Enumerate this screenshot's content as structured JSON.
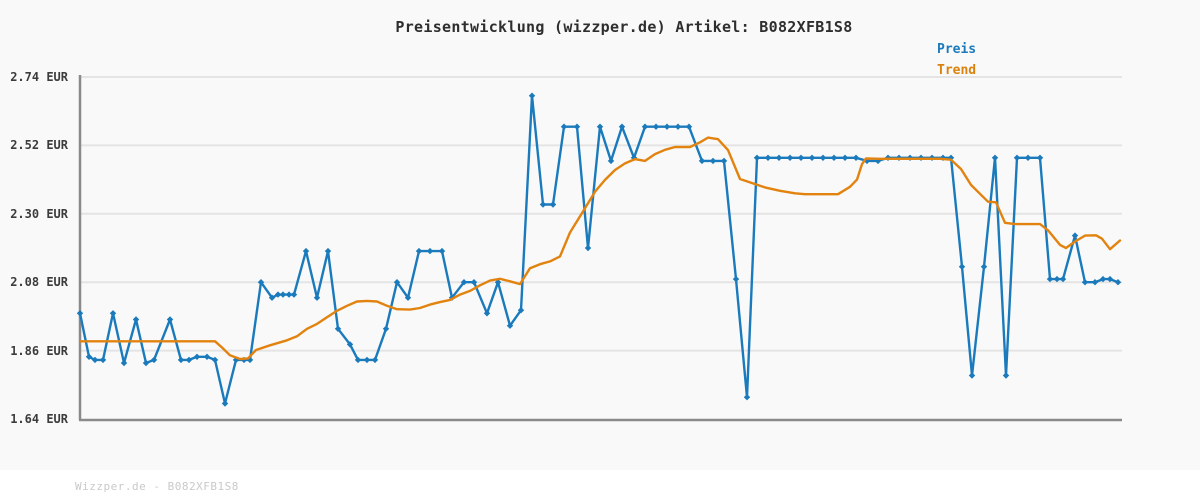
{
  "title": "Preisentwicklung (wizzper.de) Artikel: B082XFB1S8",
  "footer": "Wizzper.de - B082XFB1S8",
  "legend": {
    "preis_label": "Preis",
    "trend_label": "Trend"
  },
  "colors": {
    "preis": "#1a7abc",
    "trend": "#e2830f",
    "grid": "#e4e4e4",
    "axis": "#8a8a8a",
    "title_text": "#2e2e2e",
    "tick_text": "#3c3c3c",
    "footer_text": "#c9c9c9"
  },
  "chart_data": {
    "type": "line",
    "title": "Preisentwicklung (wizzper.de) Artikel: B082XFB1S8",
    "xlabel": "",
    "ylabel": "EUR",
    "ylim": [
      1.64,
      2.74
    ],
    "yticks": [
      "2.74 EUR",
      "2.52 EUR",
      "2.30 EUR",
      "2.08 EUR",
      "1.86 EUR",
      "1.64 EUR"
    ],
    "grid": "horizontal-only",
    "legend_position": "top-right",
    "x_axis_note": "no x tick labels shown; x values are horizontal pixel positions (irregular time samples)",
    "series": [
      {
        "name": "Preis",
        "color": "#1a7abc",
        "marker": "diamond",
        "points": [
          [
            80,
            1.98
          ],
          [
            89,
            1.84
          ],
          [
            95,
            1.83
          ],
          [
            103,
            1.83
          ],
          [
            113,
            1.98
          ],
          [
            124,
            1.82
          ],
          [
            136,
            1.96
          ],
          [
            146,
            1.82
          ],
          [
            154,
            1.83
          ],
          [
            170,
            1.96
          ],
          [
            181,
            1.83
          ],
          [
            189,
            1.83
          ],
          [
            197,
            1.84
          ],
          [
            207,
            1.84
          ],
          [
            215,
            1.83
          ],
          [
            225,
            1.69
          ],
          [
            236,
            1.83
          ],
          [
            244,
            1.83
          ],
          [
            250,
            1.83
          ],
          [
            261,
            2.08
          ],
          [
            272,
            2.03
          ],
          [
            278,
            2.04
          ],
          [
            283,
            2.04
          ],
          [
            289,
            2.04
          ],
          [
            294,
            2.04
          ],
          [
            306,
            2.18
          ],
          [
            317,
            2.03
          ],
          [
            328,
            2.18
          ],
          [
            338,
            1.93
          ],
          [
            350,
            1.88
          ],
          [
            358,
            1.83
          ],
          [
            367,
            1.83
          ],
          [
            375,
            1.83
          ],
          [
            386,
            1.93
          ],
          [
            397,
            2.08
          ],
          [
            408,
            2.03
          ],
          [
            419,
            2.18
          ],
          [
            430,
            2.18
          ],
          [
            442,
            2.18
          ],
          [
            452,
            2.03
          ],
          [
            464,
            2.08
          ],
          [
            474,
            2.08
          ],
          [
            487,
            1.98
          ],
          [
            498,
            2.08
          ],
          [
            510,
            1.94
          ],
          [
            521,
            1.99
          ],
          [
            532,
            2.68
          ],
          [
            543,
            2.33
          ],
          [
            553,
            2.33
          ],
          [
            564,
            2.58
          ],
          [
            577,
            2.58
          ],
          [
            588,
            2.19
          ],
          [
            600,
            2.58
          ],
          [
            611,
            2.47
          ],
          [
            622,
            2.58
          ],
          [
            634,
            2.48
          ],
          [
            645,
            2.58
          ],
          [
            656,
            2.58
          ],
          [
            667,
            2.58
          ],
          [
            678,
            2.58
          ],
          [
            689,
            2.58
          ],
          [
            702,
            2.47
          ],
          [
            713,
            2.47
          ],
          [
            724,
            2.47
          ],
          [
            736,
            2.09
          ],
          [
            747,
            1.71
          ],
          [
            757,
            2.48
          ],
          [
            768,
            2.48
          ],
          [
            779,
            2.48
          ],
          [
            790,
            2.48
          ],
          [
            801,
            2.48
          ],
          [
            812,
            2.48
          ],
          [
            823,
            2.48
          ],
          [
            834,
            2.48
          ],
          [
            845,
            2.48
          ],
          [
            856,
            2.48
          ],
          [
            867,
            2.47
          ],
          [
            878,
            2.47
          ],
          [
            888,
            2.48
          ],
          [
            899,
            2.48
          ],
          [
            910,
            2.48
          ],
          [
            921,
            2.48
          ],
          [
            932,
            2.48
          ],
          [
            943,
            2.48
          ],
          [
            951,
            2.48
          ],
          [
            962,
            2.13
          ],
          [
            972,
            1.78
          ],
          [
            984,
            2.13
          ],
          [
            995,
            2.48
          ],
          [
            1006,
            1.78
          ],
          [
            1017,
            2.48
          ],
          [
            1028,
            2.48
          ],
          [
            1040,
            2.48
          ],
          [
            1050,
            2.09
          ],
          [
            1057,
            2.09
          ],
          [
            1063,
            2.09
          ],
          [
            1075,
            2.23
          ],
          [
            1085,
            2.08
          ],
          [
            1095,
            2.08
          ],
          [
            1103,
            2.09
          ],
          [
            1110,
            2.09
          ],
          [
            1118,
            2.08
          ]
        ]
      },
      {
        "name": "Trend",
        "color": "#e2830f",
        "marker": "none",
        "points": [
          [
            80,
            1.89
          ],
          [
            215,
            1.89
          ],
          [
            222,
            1.87
          ],
          [
            230,
            1.845
          ],
          [
            240,
            1.833
          ],
          [
            248,
            1.835
          ],
          [
            256,
            1.862
          ],
          [
            270,
            1.877
          ],
          [
            287,
            1.893
          ],
          [
            297,
            1.906
          ],
          [
            307,
            1.93
          ],
          [
            317,
            1.946
          ],
          [
            327,
            1.967
          ],
          [
            337,
            1.988
          ],
          [
            347,
            2.004
          ],
          [
            357,
            2.018
          ],
          [
            367,
            2.02
          ],
          [
            377,
            2.018
          ],
          [
            387,
            2.004
          ],
          [
            397,
            1.993
          ],
          [
            410,
            1.992
          ],
          [
            420,
            1.997
          ],
          [
            430,
            2.008
          ],
          [
            440,
            2.016
          ],
          [
            450,
            2.023
          ],
          [
            460,
            2.04
          ],
          [
            470,
            2.052
          ],
          [
            480,
            2.07
          ],
          [
            490,
            2.085
          ],
          [
            500,
            2.091
          ],
          [
            510,
            2.083
          ],
          [
            520,
            2.074
          ],
          [
            530,
            2.125
          ],
          [
            540,
            2.138
          ],
          [
            550,
            2.147
          ],
          [
            560,
            2.163
          ],
          [
            570,
            2.24
          ],
          [
            585,
            2.318
          ],
          [
            595,
            2.371
          ],
          [
            605,
            2.409
          ],
          [
            615,
            2.441
          ],
          [
            625,
            2.462
          ],
          [
            635,
            2.476
          ],
          [
            645,
            2.47
          ],
          [
            655,
            2.492
          ],
          [
            665,
            2.506
          ],
          [
            675,
            2.515
          ],
          [
            690,
            2.515
          ],
          [
            700,
            2.53
          ],
          [
            708,
            2.545
          ],
          [
            718,
            2.54
          ],
          [
            728,
            2.505
          ],
          [
            740,
            2.412
          ],
          [
            750,
            2.401
          ],
          [
            765,
            2.385
          ],
          [
            780,
            2.374
          ],
          [
            795,
            2.366
          ],
          [
            805,
            2.363
          ],
          [
            838,
            2.363
          ],
          [
            850,
            2.387
          ],
          [
            857,
            2.41
          ],
          [
            862,
            2.46
          ],
          [
            866,
            2.478
          ],
          [
            880,
            2.477
          ],
          [
            900,
            2.477
          ],
          [
            920,
            2.477
          ],
          [
            940,
            2.477
          ],
          [
            951,
            2.474
          ],
          [
            961,
            2.444
          ],
          [
            971,
            2.393
          ],
          [
            981,
            2.361
          ],
          [
            988,
            2.339
          ],
          [
            996,
            2.337
          ],
          [
            1005,
            2.271
          ],
          [
            1015,
            2.267
          ],
          [
            1040,
            2.267
          ],
          [
            1048,
            2.247
          ],
          [
            1060,
            2.2
          ],
          [
            1066,
            2.19
          ],
          [
            1075,
            2.211
          ],
          [
            1085,
            2.23
          ],
          [
            1096,
            2.231
          ],
          [
            1102,
            2.22
          ],
          [
            1110,
            2.186
          ],
          [
            1120,
            2.214
          ]
        ]
      }
    ]
  }
}
